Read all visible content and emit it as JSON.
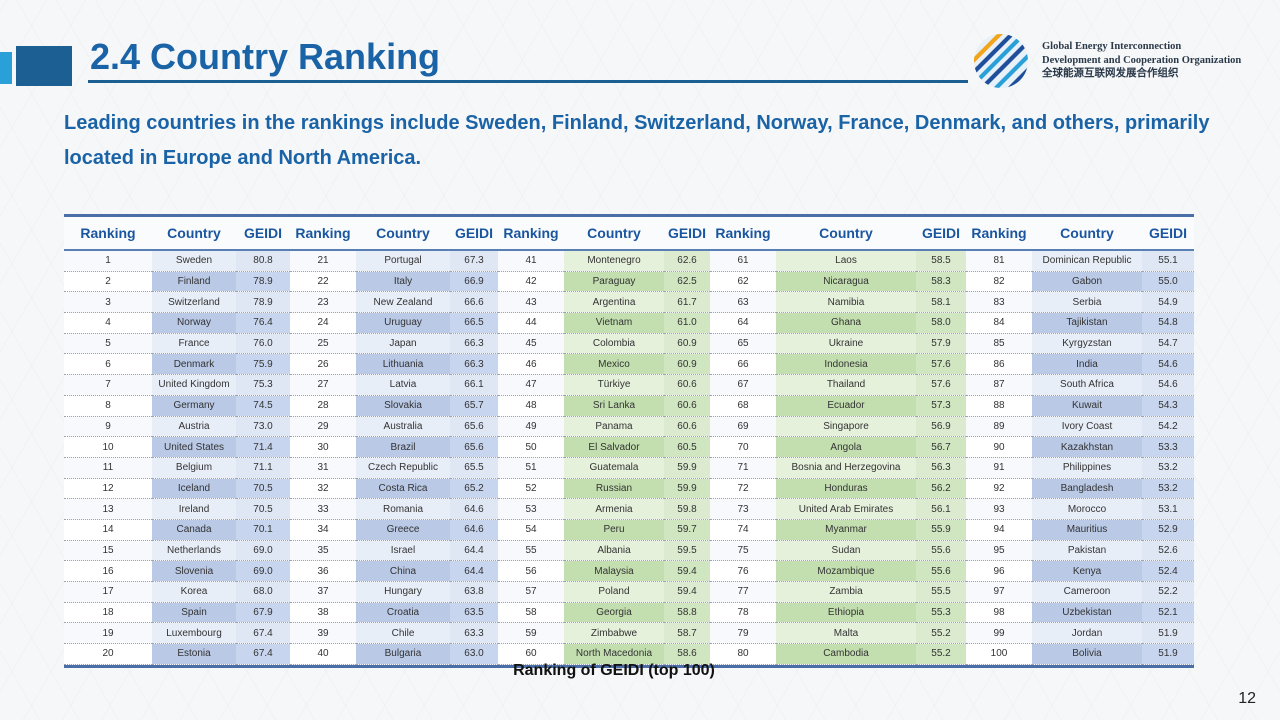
{
  "header": {
    "title": "2.4 Country Ranking",
    "org_line1": "Global Energy Interconnection",
    "org_line2": "Development and Cooperation Organization",
    "org_line3": "全球能源互联网发展合作组织"
  },
  "subtitle": "Leading countries in the rankings include Sweden, Finland, Switzerland, Norway, France, Denmark, and others, primarily located in Europe and North America.",
  "table": {
    "headers": [
      "Ranking",
      "Country",
      "GEIDI",
      "Ranking",
      "Country",
      "GEIDI",
      "Ranking",
      "Country",
      "GEIDI",
      "Ranking",
      "Country",
      "GEIDI",
      "Ranking",
      "Country",
      "GEIDI"
    ],
    "rows": [
      [
        "1",
        "Sweden",
        "80.8",
        "21",
        "Portugal",
        "67.3",
        "41",
        "Montenegro",
        "62.6",
        "61",
        "Laos",
        "58.5",
        "81",
        "Dominican Republic",
        "55.1"
      ],
      [
        "2",
        "Finland",
        "78.9",
        "22",
        "Italy",
        "66.9",
        "42",
        "Paraguay",
        "62.5",
        "62",
        "Nicaragua",
        "58.3",
        "82",
        "Gabon",
        "55.0"
      ],
      [
        "3",
        "Switzerland",
        "78.9",
        "23",
        "New Zealand",
        "66.6",
        "43",
        "Argentina",
        "61.7",
        "63",
        "Namibia",
        "58.1",
        "83",
        "Serbia",
        "54.9"
      ],
      [
        "4",
        "Norway",
        "76.4",
        "24",
        "Uruguay",
        "66.5",
        "44",
        "Vietnam",
        "61.0",
        "64",
        "Ghana",
        "58.0",
        "84",
        "Tajikistan",
        "54.8"
      ],
      [
        "5",
        "France",
        "76.0",
        "25",
        "Japan",
        "66.3",
        "45",
        "Colombia",
        "60.9",
        "65",
        "Ukraine",
        "57.9",
        "85",
        "Kyrgyzstan",
        "54.7"
      ],
      [
        "6",
        "Denmark",
        "75.9",
        "26",
        "Lithuania",
        "66.3",
        "46",
        "Mexico",
        "60.9",
        "66",
        "Indonesia",
        "57.6",
        "86",
        "India",
        "54.6"
      ],
      [
        "7",
        "United Kingdom",
        "75.3",
        "27",
        "Latvia",
        "66.1",
        "47",
        "Türkiye",
        "60.6",
        "67",
        "Thailand",
        "57.6",
        "87",
        "South Africa",
        "54.6"
      ],
      [
        "8",
        "Germany",
        "74.5",
        "28",
        "Slovakia",
        "65.7",
        "48",
        "Sri Lanka",
        "60.6",
        "68",
        "Ecuador",
        "57.3",
        "88",
        "Kuwait",
        "54.3"
      ],
      [
        "9",
        "Austria",
        "73.0",
        "29",
        "Australia",
        "65.6",
        "49",
        "Panama",
        "60.6",
        "69",
        "Singapore",
        "56.9",
        "89",
        "Ivory Coast",
        "54.2"
      ],
      [
        "10",
        "United States",
        "71.4",
        "30",
        "Brazil",
        "65.6",
        "50",
        "El Salvador",
        "60.5",
        "70",
        "Angola",
        "56.7",
        "90",
        "Kazakhstan",
        "53.3"
      ],
      [
        "11",
        "Belgium",
        "71.1",
        "31",
        "Czech Republic",
        "65.5",
        "51",
        "Guatemala",
        "59.9",
        "71",
        "Bosnia and Herzegovina",
        "56.3",
        "91",
        "Philippines",
        "53.2"
      ],
      [
        "12",
        "Iceland",
        "70.5",
        "32",
        "Costa Rica",
        "65.2",
        "52",
        "Russian",
        "59.9",
        "72",
        "Honduras",
        "56.2",
        "92",
        "Bangladesh",
        "53.2"
      ],
      [
        "13",
        "Ireland",
        "70.5",
        "33",
        "Romania",
        "64.6",
        "53",
        "Armenia",
        "59.8",
        "73",
        "United Arab Emirates",
        "56.1",
        "93",
        "Morocco",
        "53.1"
      ],
      [
        "14",
        "Canada",
        "70.1",
        "34",
        "Greece",
        "64.6",
        "54",
        "Peru",
        "59.7",
        "74",
        "Myanmar",
        "55.9",
        "94",
        "Mauritius",
        "52.9"
      ],
      [
        "15",
        "Netherlands",
        "69.0",
        "35",
        "Israel",
        "64.4",
        "55",
        "Albania",
        "59.5",
        "75",
        "Sudan",
        "55.6",
        "95",
        "Pakistan",
        "52.6"
      ],
      [
        "16",
        "Slovenia",
        "69.0",
        "36",
        "China",
        "64.4",
        "56",
        "Malaysia",
        "59.4",
        "76",
        "Mozambique",
        "55.6",
        "96",
        "Kenya",
        "52.4"
      ],
      [
        "17",
        "Korea",
        "68.0",
        "37",
        "Hungary",
        "63.8",
        "57",
        "Poland",
        "59.4",
        "77",
        "Zambia",
        "55.5",
        "97",
        "Cameroon",
        "52.2"
      ],
      [
        "18",
        "Spain",
        "67.9",
        "38",
        "Croatia",
        "63.5",
        "58",
        "Georgia",
        "58.8",
        "78",
        "Ethiopia",
        "55.3",
        "98",
        "Uzbekistan",
        "52.1"
      ],
      [
        "19",
        "Luxembourg",
        "67.4",
        "39",
        "Chile",
        "63.3",
        "59",
        "Zimbabwe",
        "58.7",
        "79",
        "Malta",
        "55.2",
        "99",
        "Jordan",
        "51.9"
      ],
      [
        "20",
        "Estonia",
        "67.4",
        "40",
        "Bulgaria",
        "63.0",
        "60",
        "North Macedonia",
        "58.6",
        "80",
        "Cambodia",
        "55.2",
        "100",
        "Bolivia",
        "51.9"
      ]
    ]
  },
  "caption": "Ranking of GEIDI (top 100)",
  "page_number": "12"
}
